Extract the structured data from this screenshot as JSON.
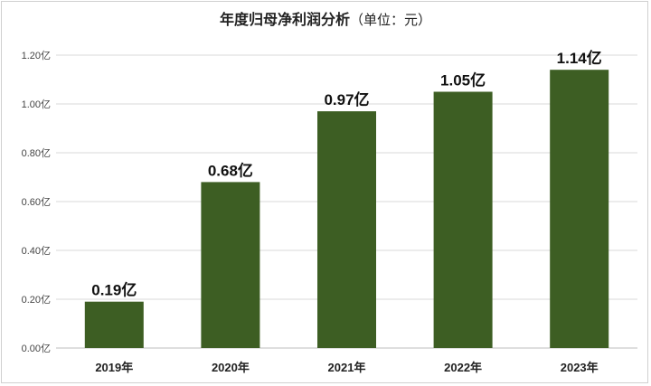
{
  "chart_data": {
    "type": "bar",
    "title": "年度归母净利润分析",
    "title_unit": "（单位：元）",
    "categories": [
      "2019年",
      "2020年",
      "2021年",
      "2022年",
      "2023年"
    ],
    "values": [
      0.19,
      0.68,
      0.97,
      1.05,
      1.14
    ],
    "data_labels": [
      "0.19亿",
      "0.68亿",
      "0.97亿",
      "1.05亿",
      "1.14亿"
    ],
    "yticks": [
      "0.00亿",
      "0.20亿",
      "0.40亿",
      "0.60亿",
      "0.80亿",
      "1.00亿",
      "1.20亿"
    ],
    "ylim": [
      0,
      1.2
    ],
    "grid": true,
    "legend": "none",
    "bar_color": "#3d5e23"
  }
}
